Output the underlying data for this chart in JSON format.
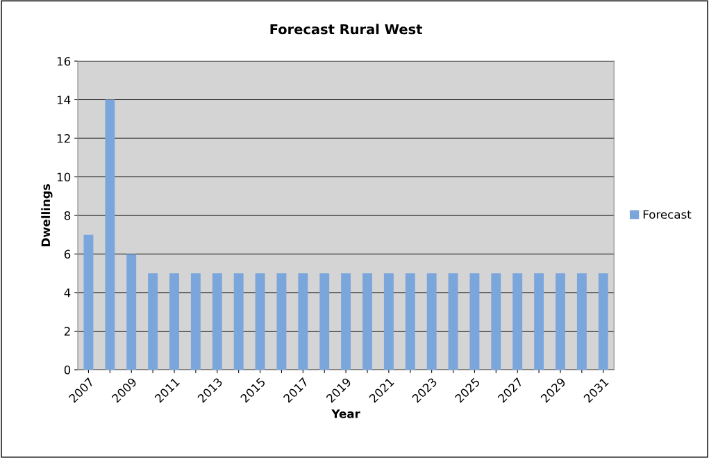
{
  "chart_data": {
    "type": "bar",
    "title": "Forecast Rural West",
    "xlabel": "Year",
    "ylabel": "Dwellings",
    "categories": [
      "2007",
      null,
      "2009",
      null,
      "2011",
      null,
      "2013",
      null,
      "2015",
      null,
      "2017",
      null,
      "2019",
      null,
      "2021",
      null,
      "2023",
      null,
      "2025",
      null,
      "2027",
      null,
      "2029",
      null,
      "2031"
    ],
    "series": [
      {
        "name": "Forecast",
        "color": "#7aa6dc",
        "values": [
          7,
          14,
          6,
          5,
          5,
          5,
          5,
          5,
          5,
          5,
          5,
          5,
          5,
          5,
          5,
          5,
          5,
          5,
          5,
          5,
          5,
          5,
          5,
          5,
          5
        ]
      }
    ],
    "ylim": [
      0,
      16
    ],
    "yticks": [
      0,
      2,
      4,
      6,
      8,
      10,
      12,
      14,
      16
    ],
    "grid": "y",
    "legend": "right"
  }
}
